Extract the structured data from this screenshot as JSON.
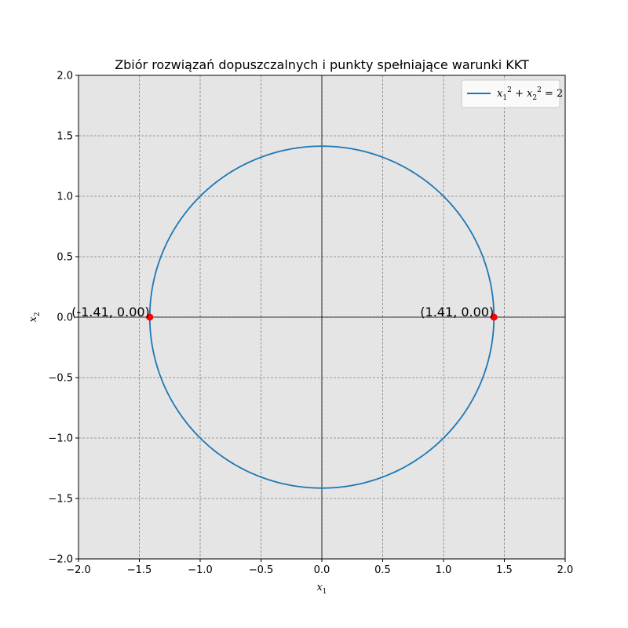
{
  "chart_data": {
    "type": "line",
    "title": "Zbiór rozwiązań dopuszczalnych i punkty spełniające warunki KKT",
    "xlabel": {
      "base": "x",
      "sub": "1"
    },
    "ylabel": {
      "base": "x",
      "sub": "2"
    },
    "xlim": [
      -2.0,
      2.0
    ],
    "ylim": [
      -2.0,
      2.0
    ],
    "xticks": [
      -2.0,
      -1.5,
      -1.0,
      -0.5,
      0.0,
      0.5,
      1.0,
      1.5,
      2.0
    ],
    "yticks": [
      -2.0,
      -1.5,
      -1.0,
      -0.5,
      0.0,
      0.5,
      1.0,
      1.5,
      2.0
    ],
    "xtick_labels": [
      "−2.0",
      "−1.5",
      "−1.0",
      "−0.5",
      "0.0",
      "0.5",
      "1.0",
      "1.5",
      "2.0"
    ],
    "ytick_labels": [
      "−2.0",
      "−1.5",
      "−1.0",
      "−0.5",
      "0.0",
      "0.5",
      "1.0",
      "1.5",
      "2.0"
    ],
    "grid": true,
    "background": "#e5e5e5",
    "legend": {
      "placement": "top-right",
      "entries": [
        {
          "label": "x1^2 + x2^2 = 2",
          "color": "#1f77b4"
        }
      ]
    },
    "series": [
      {
        "name": "x1^2 + x2^2 = 2",
        "kind": "circle",
        "center": [
          0,
          0
        ],
        "radius": 1.4142,
        "color": "#1f77b4"
      }
    ],
    "points": [
      {
        "x": -1.4142,
        "y": 0.0,
        "label": "(-1.41, 0.00)",
        "color": "#ff0000"
      },
      {
        "x": 1.4142,
        "y": 0.0,
        "label": "(1.41, 0.00)",
        "color": "#ff0000"
      }
    ]
  }
}
